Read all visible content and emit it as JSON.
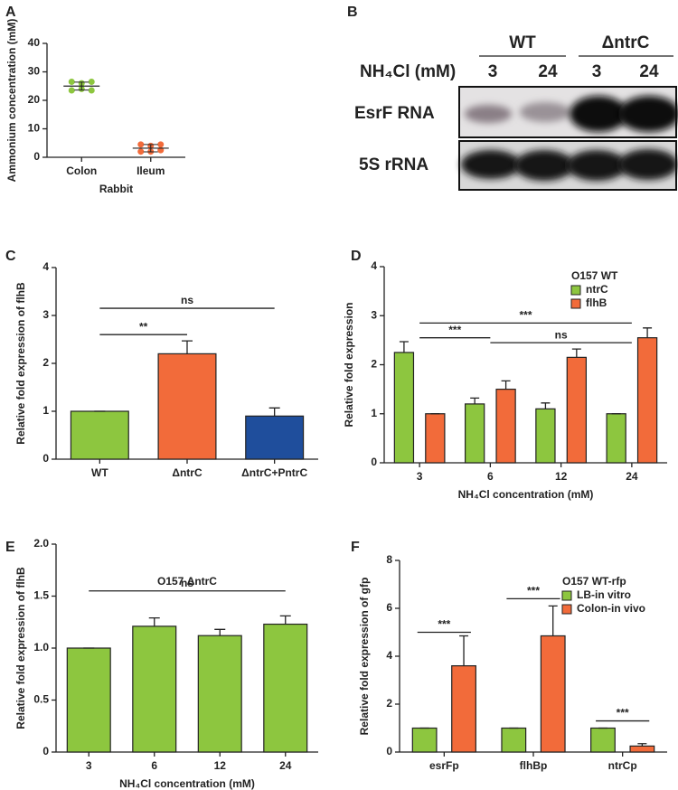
{
  "chart_data": [
    {
      "panel": "A",
      "type": "dotplot",
      "y_label": "Ammonium concentration (mM)",
      "x_label": "Rabbit",
      "ylim": [
        0,
        40
      ],
      "yticks": [
        0,
        10,
        20,
        30,
        40
      ],
      "groups": [
        {
          "category": "Colon",
          "color": "#8dc63f",
          "values": [
            26.5,
            26,
            26.5,
            23.5,
            24,
            23.5
          ],
          "mean": 25,
          "sd": 1.4
        },
        {
          "category": "Ileum",
          "color": "#f26b3a",
          "values": [
            4.5,
            4,
            4.5,
            2,
            2,
            2.5
          ],
          "mean": 3.2,
          "sd": 1.3
        }
      ]
    },
    {
      "panel": "C",
      "type": "bar",
      "y_label": "Relative fold expression of flhB",
      "ylim": [
        0,
        4
      ],
      "yticks": [
        0,
        1,
        2,
        3,
        4
      ],
      "categories": [
        "WT",
        "ΔntrC",
        "ΔntrC+PntrC"
      ],
      "values": [
        1,
        2.2,
        0.9
      ],
      "errors": [
        0,
        0.27,
        0.17
      ],
      "colors": [
        "#8dc63f",
        "#f26b3a",
        "#1f4e9c"
      ],
      "annotations": [
        {
          "text": "ns",
          "y": 3.15,
          "from": "WT",
          "to": "ΔntrC+PntrC"
        },
        {
          "text": "**",
          "y": 2.6,
          "from": "WT",
          "to": "ΔntrC"
        }
      ]
    },
    {
      "panel": "D",
      "type": "grouped_bar",
      "y_label": "Relative fold expression",
      "x_label": "NH₄Cl concentration (mM)",
      "ylim": [
        0,
        4
      ],
      "yticks": [
        0,
        1,
        2,
        3,
        4
      ],
      "legend_title": "O157 WT",
      "categories": [
        "3",
        "6",
        "12",
        "24"
      ],
      "series": [
        {
          "name": "ntrC",
          "color": "#8dc63f",
          "values": [
            2.25,
            1.2,
            1.1,
            1.0
          ],
          "errors": [
            0.22,
            0.12,
            0.12,
            0
          ]
        },
        {
          "name": "flhB",
          "color": "#f26b3a",
          "values": [
            1.0,
            1.5,
            2.15,
            2.55
          ],
          "errors": [
            0,
            0.17,
            0.17,
            0.2
          ]
        }
      ],
      "annotations": [
        {
          "text": "***",
          "y": 2.85,
          "from": "3",
          "to": "24"
        },
        {
          "text": "***",
          "y": 2.55,
          "from": "3",
          "to": "6"
        },
        {
          "text": "ns",
          "y": 2.45,
          "from": "6",
          "to": "24"
        }
      ]
    },
    {
      "panel": "E",
      "type": "bar",
      "title": "O157 ΔntrC",
      "y_label": "Relative fold expression of flhB",
      "x_label": "NH₄Cl concentration (mM)",
      "ylim": [
        0,
        2
      ],
      "yticks": [
        0,
        0.5,
        {
          "value": 1,
          "label": "1.0"
        },
        1.5,
        {
          "value": 2,
          "label": "2.0"
        }
      ],
      "categories": [
        "3",
        "6",
        "12",
        "24"
      ],
      "values": [
        1,
        1.21,
        1.12,
        1.23
      ],
      "errors": [
        0,
        0.08,
        0.06,
        0.08
      ],
      "color": "#8dc63f",
      "annotations": [
        {
          "text": "ns",
          "y": 1.55,
          "from": "3",
          "to": "24"
        }
      ]
    },
    {
      "panel": "F",
      "type": "grouped_bar",
      "y_label": "Relative fold expression of gfp",
      "ylim": [
        0,
        8
      ],
      "yticks": [
        0,
        2,
        4,
        6,
        8
      ],
      "legend_title": "O157 WT-rfp",
      "categories": [
        "esrFp",
        "flhBp",
        "ntrCp"
      ],
      "series": [
        {
          "name": "LB-in vitro",
          "color": "#8dc63f",
          "values": [
            1,
            1,
            1
          ],
          "errors": [
            0,
            0,
            0
          ]
        },
        {
          "name": "Colon-in vivo",
          "color": "#f26b3a",
          "values": [
            3.6,
            4.85,
            0.25
          ],
          "errors": [
            1.25,
            1.25,
            0.1
          ]
        }
      ],
      "annotations": [
        {
          "text": "***",
          "y": 5.0,
          "from": "esrFp",
          "to": "esrFp"
        },
        {
          "text": "***",
          "y": 6.4,
          "from": "flhBp",
          "to": "flhBp"
        },
        {
          "text": "***",
          "y": 1.3,
          "from": "ntrCp",
          "to": "ntrCp"
        }
      ]
    }
  ],
  "blot": {
    "panel": "B",
    "condition": "NH₄Cl (mM)",
    "groups": [
      {
        "label": "WT",
        "lanes": [
          "3",
          "24"
        ]
      },
      {
        "label": "ΔntrC",
        "lanes": [
          "3",
          "24"
        ]
      }
    ],
    "rows": [
      "EsrF RNA",
      "5S rRNA"
    ]
  }
}
